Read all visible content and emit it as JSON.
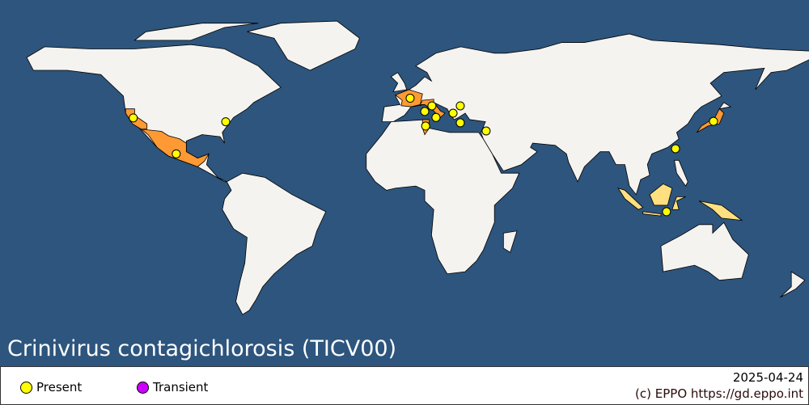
{
  "title": "Crinivirus contagichlorosis (TICV00)",
  "legend": {
    "items": [
      {
        "label": "Present",
        "color": "#ffff00"
      },
      {
        "label": "Transient",
        "color": "#cc00ff"
      }
    ]
  },
  "date": "2025-04-24",
  "credit": "(c) EPPO https://gd.eppo.int",
  "colors": {
    "ocean": "#2d557d",
    "land": "#f5f3f0",
    "present_country": "#ff9933",
    "present_region": "#ffe080",
    "border": "#000000"
  },
  "points": [
    {
      "name": "California",
      "lon": -120.6,
      "lat": 37.8
    },
    {
      "name": "North Carolina",
      "lon": -79.5,
      "lat": 36
    },
    {
      "name": "Mexico",
      "lon": -101.5,
      "lat": 21
    },
    {
      "name": "France",
      "lon": 2.5,
      "lat": 47
    },
    {
      "name": "Italy",
      "lon": 12.2,
      "lat": 43.4
    },
    {
      "name": "Sardinia",
      "lon": 9,
      "lat": 40.8
    },
    {
      "name": "Sicily",
      "lon": 14,
      "lat": 38
    },
    {
      "name": "Tunisia",
      "lon": 9.4,
      "lat": 34
    },
    {
      "name": "Greece",
      "lon": 21.6,
      "lat": 40
    },
    {
      "name": "Bulgaria",
      "lon": 24.8,
      "lat": 43.4
    },
    {
      "name": "Crete",
      "lon": 24.8,
      "lat": 35.5
    },
    {
      "name": "Jordan",
      "lon": 36.3,
      "lat": 31.7
    },
    {
      "name": "Taiwan",
      "lon": 120.5,
      "lat": 23.4
    },
    {
      "name": "Japan",
      "lon": 137.4,
      "lat": 36.2
    },
    {
      "name": "Indonesia",
      "lon": 116.5,
      "lat": -6
    }
  ]
}
